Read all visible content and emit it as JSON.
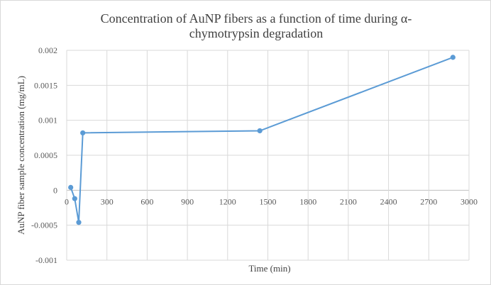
{
  "chart_data": {
    "type": "line",
    "title_lines": [
      "Concentration of AuNP fibers as a function of time during α-",
      "chymotrypsin degradation"
    ],
    "xlabel": "Time (min)",
    "ylabel": "AuNP fiber sample concentration (mg/mL)",
    "xlim": [
      0,
      3000
    ],
    "ylim": [
      -0.001,
      0.002
    ],
    "x_ticks": [
      0,
      300,
      600,
      900,
      1200,
      1500,
      1800,
      2100,
      2400,
      2700,
      3000
    ],
    "x_tick_labels": [
      "0",
      "300",
      "600",
      "900",
      "1200",
      "1500",
      "1800",
      "2100",
      "2400",
      "2700",
      "3000"
    ],
    "y_ticks": [
      -0.001,
      -0.0005,
      0,
      0.0005,
      0.001,
      0.0015,
      0.002
    ],
    "y_tick_labels": [
      "-0.001",
      "-0.0005",
      "0",
      "0.0005",
      "0.001",
      "0.0015",
      "0.002"
    ],
    "grid": true,
    "legend": "none",
    "series": [
      {
        "color": "#5b9bd5",
        "x": [
          30,
          60,
          90,
          120,
          1440,
          2880
        ],
        "y": [
          4e-05,
          -0.00012,
          -0.00046,
          0.00082,
          0.00085,
          0.0019
        ]
      }
    ]
  }
}
